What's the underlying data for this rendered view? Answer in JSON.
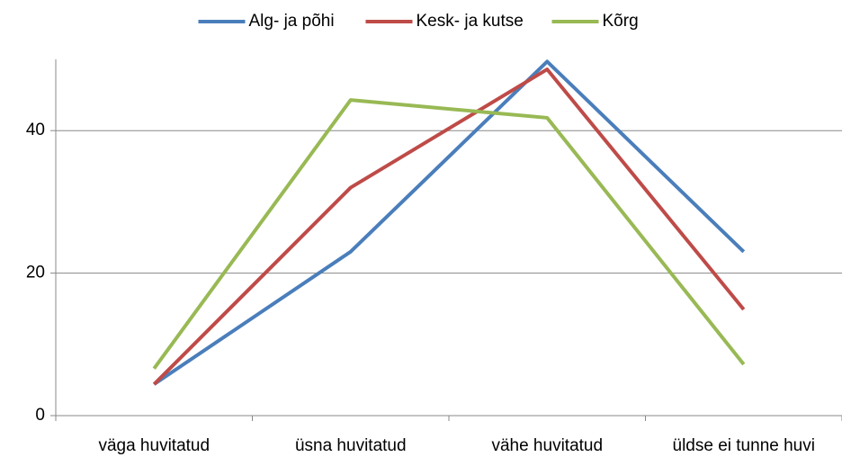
{
  "chart_data": {
    "type": "line",
    "categories": [
      "väga huvitatud",
      "üsna huvitatud",
      "vähe huvitatud",
      "üldse ei tunne huvi"
    ],
    "series": [
      {
        "name": "Alg- ja põhi",
        "color": "#4a7ebb",
        "values": [
          4.4,
          23,
          49.7,
          23
        ]
      },
      {
        "name": "Kesk- ja kutse",
        "color": "#be4b48",
        "values": [
          4.4,
          32,
          48.6,
          14.9
        ]
      },
      {
        "name": "Kõrg",
        "color": "#98b954",
        "values": [
          6.6,
          44.3,
          41.8,
          7.2
        ]
      }
    ],
    "ylim": [
      0,
      50
    ],
    "yticks": [
      0,
      20,
      40
    ],
    "grid": true,
    "legend": "top"
  }
}
